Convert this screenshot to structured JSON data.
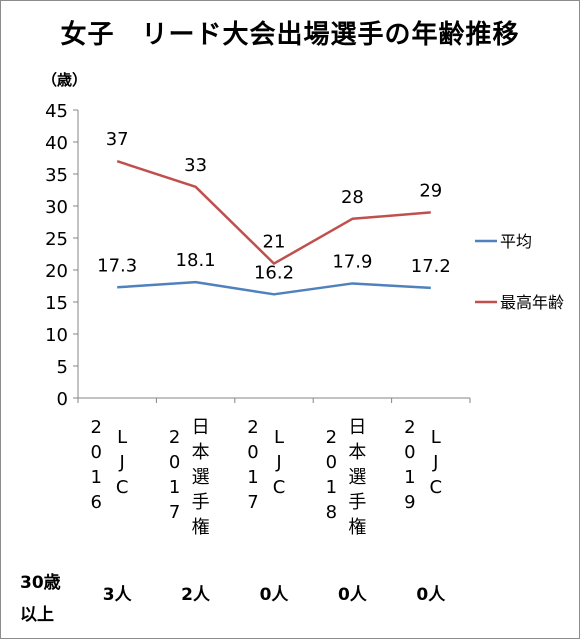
{
  "chart_data": {
    "type": "line",
    "title": "女子　リード大会出場選手の年齢推移",
    "ylabel": "（歳）",
    "ylim": [
      0,
      45
    ],
    "yticks": [
      0,
      5,
      10,
      15,
      20,
      25,
      30,
      35,
      40,
      45
    ],
    "categories": [
      [
        "2016",
        "LJC"
      ],
      [
        "2017",
        "日本選手権"
      ],
      [
        "2017",
        "LJC"
      ],
      [
        "2018",
        "日本選手権"
      ],
      [
        "2019",
        "LJC"
      ]
    ],
    "series": [
      {
        "name": "平均",
        "color": "#4f81bd",
        "values": [
          17.3,
          18.1,
          16.2,
          17.9,
          17.2
        ]
      },
      {
        "name": "最高年齢",
        "color": "#c0504d",
        "values": [
          37,
          33,
          21,
          28,
          29
        ]
      }
    ],
    "legend_position": "right",
    "grid": false,
    "footer": {
      "header_lines": [
        "30歳",
        "以上"
      ],
      "values": [
        "3人",
        "2人",
        "0人",
        "0人",
        "0人"
      ]
    }
  }
}
